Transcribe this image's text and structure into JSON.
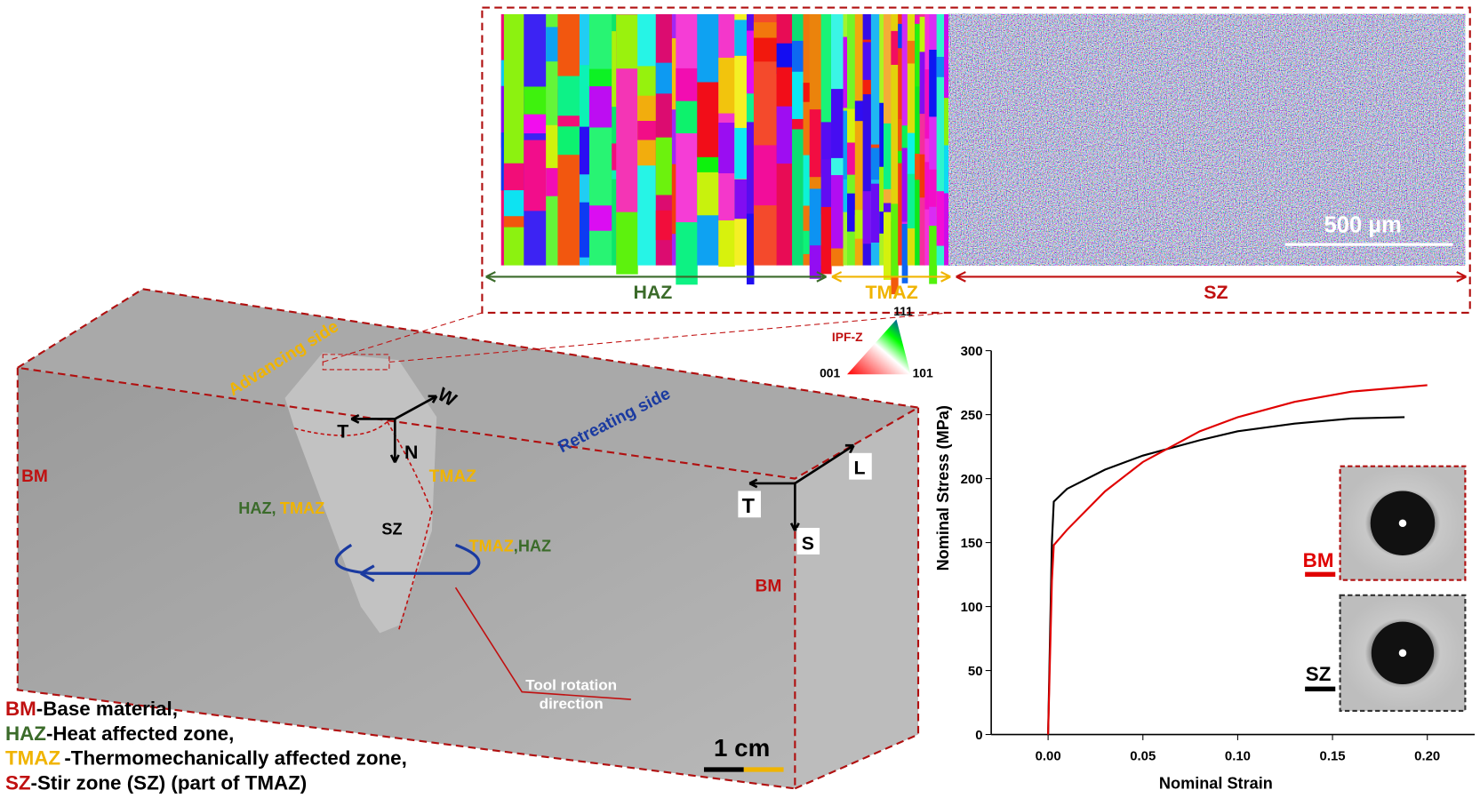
{
  "figure": {
    "ebsd": {
      "scale_bar": "500 µm",
      "zones": [
        "HAZ",
        "TMAZ",
        "SZ"
      ],
      "ipf": {
        "title": "IPF-Z",
        "top": "111",
        "left": "001",
        "right": "101"
      }
    },
    "specimen": {
      "advancing": "Advancing side",
      "retreating": "Retreating side",
      "bm_left": "BM",
      "bm_right": "BM",
      "axes1": [
        "T",
        "N",
        "W"
      ],
      "axes2": [
        "T",
        "L",
        "S"
      ],
      "tmaz_top": "TMAZ",
      "haz_left": "HAZ,",
      "tmaz_left": "TMAZ",
      "sz": "SZ",
      "tmaz_right": "TMAZ",
      "haz_right": ",HAZ",
      "tool": [
        "Tool rotation",
        "direction"
      ],
      "scale": "1 cm"
    },
    "legend": [
      {
        "abbr": "BM",
        "text": "-Base material,"
      },
      {
        "abbr": "HAZ",
        "text": "-Heat affected zone,"
      },
      {
        "abbr": "TMAZ",
        "text": "-Thermomechanically affected zone,"
      },
      {
        "abbr": "SZ",
        "text": "-Stir zone (SZ) (part of TMAZ)"
      }
    ]
  },
  "chart_data": {
    "type": "line",
    "x_label": "Nominal Strain",
    "y_label": "Nominal Stress (MPa)",
    "xlim": [
      -0.03,
      0.225
    ],
    "ylim": [
      0,
      300
    ],
    "xticks": [
      {
        "value": 0,
        "label": "0.00"
      },
      {
        "value": 0.05,
        "label": "0.05"
      },
      {
        "value": 0.1,
        "label": "0.10"
      },
      {
        "value": 0.15,
        "label": "0.15"
      },
      {
        "value": 0.2,
        "label": "0.20"
      }
    ],
    "yticks": [
      0,
      50,
      100,
      150,
      200,
      250,
      300
    ],
    "series": [
      {
        "name": "SZ",
        "color": "#000000",
        "x": [
          0,
          0.002,
          0.003,
          0.01,
          0.03,
          0.05,
          0.08,
          0.1,
          0.13,
          0.16,
          0.188
        ],
        "values": [
          0,
          150,
          182,
          192,
          207,
          218,
          230,
          237,
          243,
          247,
          248
        ]
      },
      {
        "name": "BM",
        "color": "#e00000",
        "x": [
          0,
          0.002,
          0.003,
          0.01,
          0.03,
          0.05,
          0.08,
          0.1,
          0.13,
          0.16,
          0.2
        ],
        "values": [
          0,
          120,
          148,
          160,
          190,
          213,
          237,
          248,
          260,
          268,
          273
        ]
      }
    ]
  }
}
